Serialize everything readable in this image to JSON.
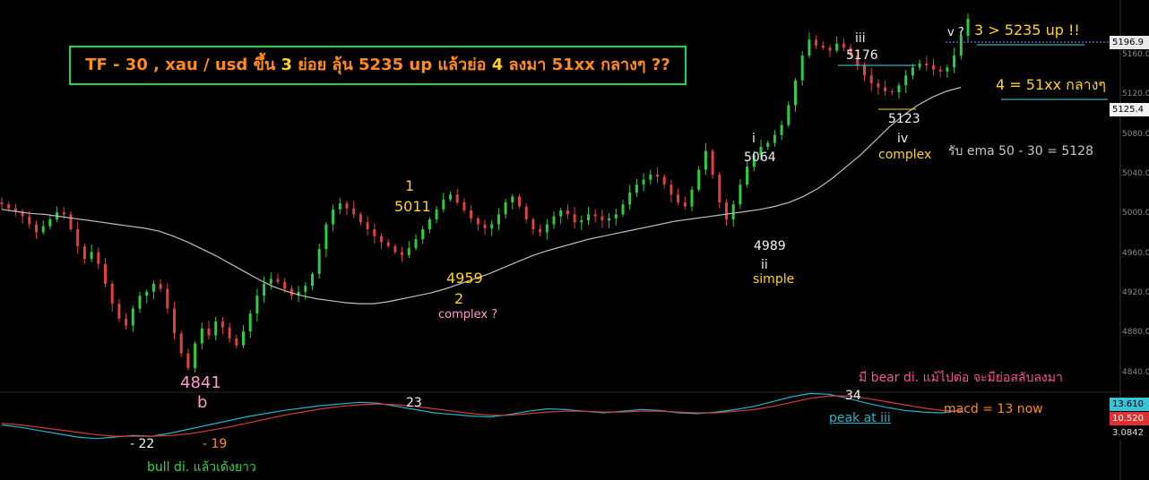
{
  "headline": {
    "part1": "TF - 30 , xau / usd ขึ้น ",
    "part2": "3",
    "part3": " ย่อย ลุ้น 5235 up แล้วย่อ ",
    "part4": "4",
    "part5": " ลงมา 51xx กลางๆ ??"
  },
  "annotations": {
    "wave_b_price": "4841",
    "wave_b_label": "b",
    "wave1_label": "1",
    "wave1_price": "5011",
    "wave2_price": "4959",
    "wave2_label": "2",
    "wave2_note": "complex ?",
    "wave_i_label": "i",
    "wave_i_price": "5064",
    "wave_ii_price": "4989",
    "wave_ii_label": "ii",
    "wave_ii_note": "simple",
    "wave_iii_label": "iii",
    "wave_iii_price": "5176",
    "wave_iv_price": "5123",
    "wave_iv_label": "iv",
    "wave_iv_note": "complex",
    "wave_v_label": "v ?",
    "target_up": "3 > 5235 up !!",
    "target_down": "4 = 51xx กลางๆ",
    "ema_note": "รับ ema 50 - 30 = 5128",
    "bear_div_note": "มี bear di. แม้ไปต่อ จะมีย่อสลับลงมา",
    "macd_now": "macd = 13 now",
    "macd_34": "34",
    "macd_peak": "peak at iii",
    "macd_23": "23",
    "macd_m22": "- 22",
    "macd_m19": "- 19",
    "bull_div_note": "bull di. แล้วเด้งยาว"
  },
  "price_boxes": {
    "current": "5196.9",
    "ema": "5125.4",
    "macd_line": "13.610",
    "signal_line": "10.520",
    "histogram": "3.0842"
  },
  "colors": {
    "background": "#000000",
    "bull_candle": "#2ecc40",
    "bear_candle": "#e04040",
    "ema": "#bdbdbd",
    "macd": "#1fb5c9",
    "signal": "#d63c3c",
    "yellow": "#ffd21f",
    "orange": "#ff8c1a",
    "pink": "#ff9ad0",
    "magenta": "#ff4f9a",
    "green": "#2fd84a",
    "white": "#f2f2f2"
  },
  "chart_data": {
    "type": "candlestick",
    "symbol": "xau / usd",
    "timeframe": "30",
    "y_ticks": [
      5160,
      5120,
      5080,
      5040,
      5000,
      4960,
      4920,
      4880,
      4840
    ],
    "ylim": [
      4828,
      5216
    ],
    "elliott_pivots": [
      {
        "label": "b",
        "price": 4841
      },
      {
        "label": "1",
        "price": 5011
      },
      {
        "label": "2",
        "price": 4959
      },
      {
        "label": "i",
        "price": 5064
      },
      {
        "label": "ii",
        "price": 4989
      },
      {
        "label": "iii",
        "price": 5176
      },
      {
        "label": "iv",
        "price": 5123
      },
      {
        "label": "v ?",
        "price": 5197
      }
    ],
    "close_path": [
      5010,
      5006,
      5003,
      4998,
      4990,
      4982,
      4988,
      4995,
      5002,
      5000,
      4985,
      4968,
      4955,
      4962,
      4950,
      4930,
      4910,
      4895,
      4888,
      4905,
      4918,
      4922,
      4930,
      4925,
      4905,
      4880,
      4860,
      4845,
      4870,
      4885,
      4878,
      4892,
      4886,
      4875,
      4868,
      4882,
      4900,
      4918,
      4930,
      4935,
      4932,
      4925,
      4918,
      4922,
      4928,
      4940,
      4965,
      4990,
      5005,
      5011,
      5006,
      5000,
      4992,
      4985,
      4978,
      4972,
      4968,
      4962,
      4959,
      4966,
      4975,
      4985,
      4995,
      5005,
      5015,
      5020,
      5012,
      5004,
      4996,
      4990,
      4986,
      4990,
      5000,
      5012,
      5018,
      5008,
      4995,
      4985,
      4982,
      4990,
      4998,
      5004,
      5000,
      4992,
      4994,
      5000,
      4998,
      4994,
      4996,
      5000,
      5010,
      5022,
      5030,
      5035,
      5040,
      5038,
      5030,
      5020,
      5012,
      5008,
      5025,
      5045,
      5064,
      5040,
      5012,
      4995,
      5010,
      5030,
      5048,
      5060,
      5068,
      5072,
      5080,
      5090,
      5110,
      5135,
      5160,
      5176,
      5170,
      5168,
      5165,
      5172,
      5168,
      5160,
      5150,
      5140,
      5132,
      5128,
      5124,
      5123,
      5130,
      5140,
      5148,
      5152,
      5150,
      5146,
      5144,
      5148,
      5160,
      5180,
      5197
    ],
    "ema_path": [
      5005,
      5003,
      5001,
      5000,
      4998,
      4996,
      4994,
      4992,
      4990,
      4988,
      4986,
      4983,
      4978,
      4972,
      4965,
      4958,
      4950,
      4942,
      4934,
      4927,
      4922,
      4918,
      4915,
      4913,
      4911,
      4910,
      4910,
      4912,
      4915,
      4918,
      4921,
      4925,
      4930,
      4935,
      4940,
      4946,
      4952,
      4958,
      4963,
      4967,
      4971,
      4975,
      4978,
      4981,
      4984,
      4987,
      4990,
      4993,
      4995,
      4997,
      4999,
      5001,
      5003,
      5005,
      5008,
      5012,
      5018,
      5026,
      5036,
      5048,
      5060,
      5074,
      5088,
      5100,
      5110,
      5118,
      5124,
      5128
    ]
  }
}
